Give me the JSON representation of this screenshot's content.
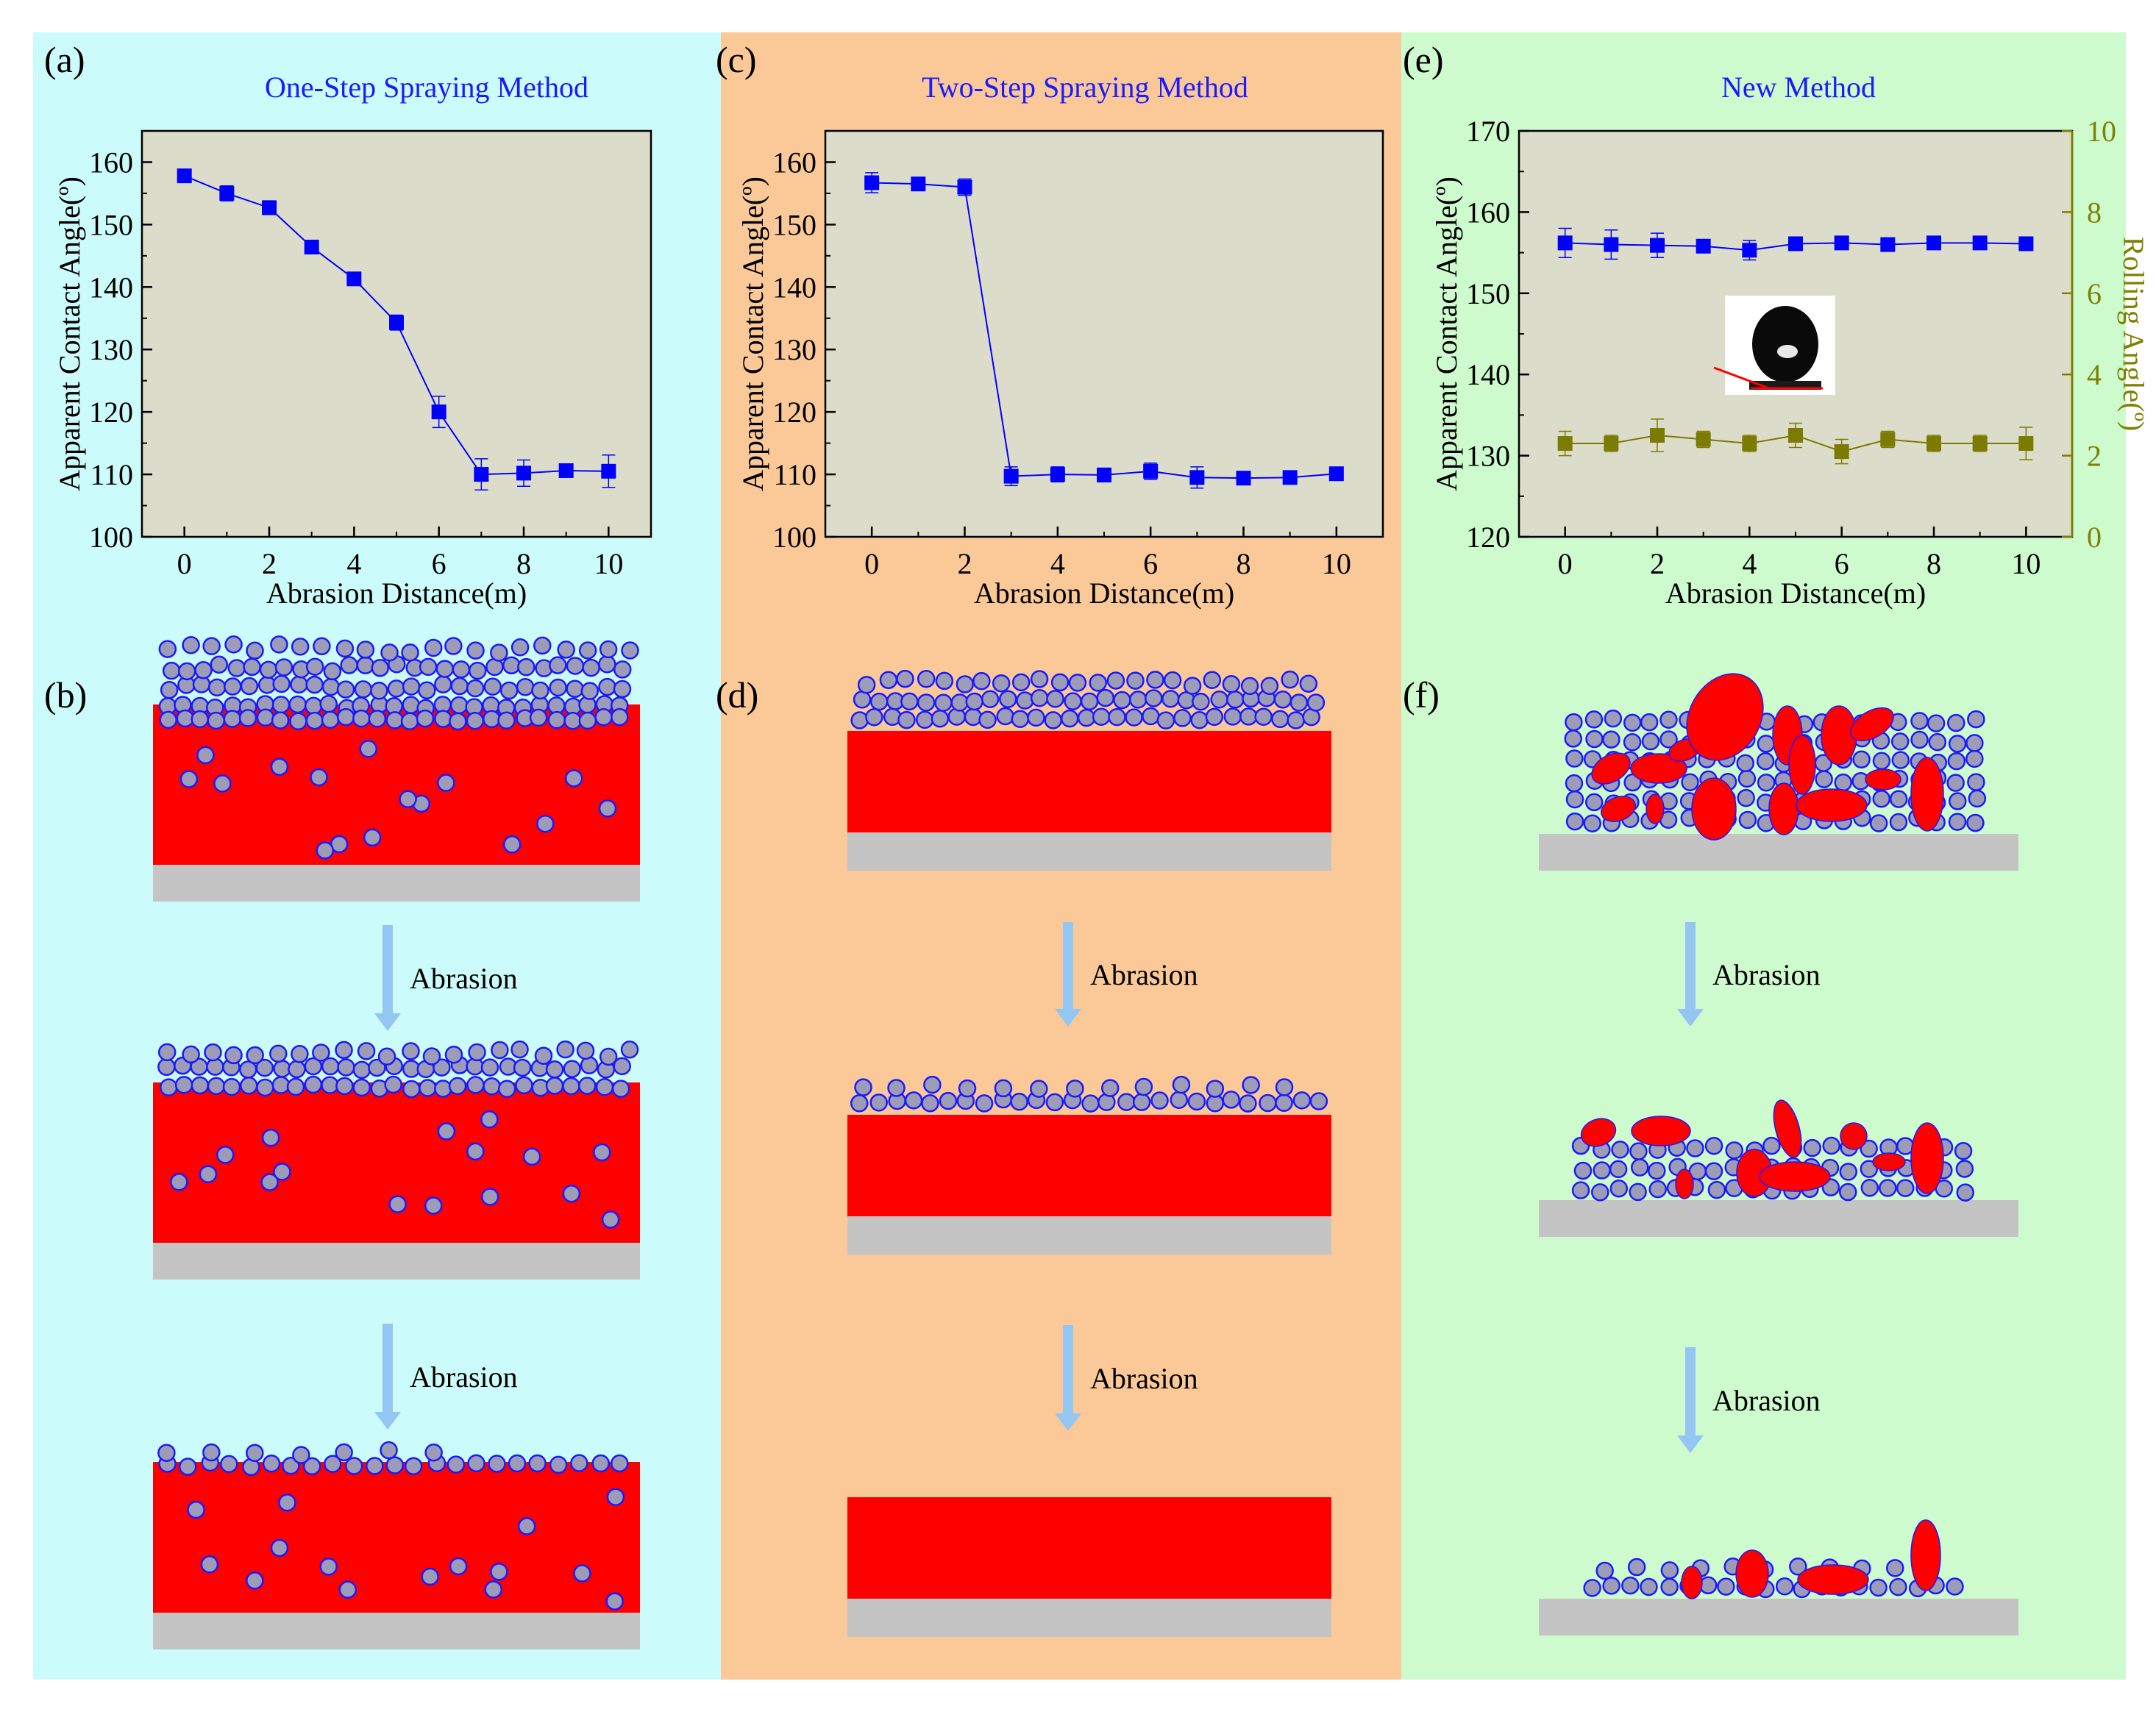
{
  "colors": {
    "panel_1": "#cbfbfb",
    "panel_2": "#fbc998",
    "panel_3": "#cdfbcd",
    "plot_bg": "#dcdcca",
    "series_blue": "#0000ff",
    "series_olive": "#7b7b00",
    "particle_fill": "#9c9cb6",
    "particle_stroke": "#1a1aff",
    "coating_red": "#ff0000",
    "substrate_gray": "#c4c4c4",
    "arrow_blue": "#94c6f4",
    "title_blue": "#1a1aff",
    "rolling_axis_olive": "#808000"
  },
  "panels": [
    {
      "chart_label": "(a)",
      "schematic_label": "(b)",
      "title": "One-Step Spraying Method",
      "arrows": [
        "Abrasion",
        "Abrasion"
      ]
    },
    {
      "chart_label": "(c)",
      "schematic_label": "(d)",
      "title": "Two-Step Spraying Method",
      "arrows": [
        "Abrasion",
        "Abrasion"
      ]
    },
    {
      "chart_label": "(e)",
      "schematic_label": "(f)",
      "title": "New Method",
      "arrows": [
        "Abrasion",
        "Abrasion"
      ]
    }
  ],
  "chart_data": [
    {
      "type": "line",
      "title": "One-Step Spraying Method",
      "xlabel": "Abrasion Distance(m)",
      "ylabel": "Apparent Contact Angle(º)",
      "xlim": [
        -1,
        11
      ],
      "ylim": [
        100,
        165
      ],
      "xticks": [
        0,
        2,
        4,
        6,
        8,
        10
      ],
      "yticks": [
        100,
        110,
        120,
        130,
        140,
        150,
        160
      ],
      "series": [
        {
          "name": "Apparent Contact Angle",
          "axis": "left",
          "color": "#0000ff",
          "x": [
            0,
            1,
            2,
            3,
            4,
            5,
            6,
            7,
            8,
            9,
            10
          ],
          "values": [
            157.8,
            155.0,
            152.7,
            146.4,
            141.3,
            134.3,
            120.0,
            110.0,
            110.2,
            110.6,
            110.5
          ],
          "errors": [
            0.8,
            1.2,
            1.1,
            0.7,
            0.8,
            1.2,
            2.5,
            2.5,
            2.1,
            0.9,
            2.6
          ]
        }
      ]
    },
    {
      "type": "line",
      "title": "Two-Step Spraying Method",
      "xlabel": "Abrasion Distance(m)",
      "ylabel": "Apparent Contact Angle(º)",
      "xlim": [
        -1,
        11
      ],
      "ylim": [
        100,
        165
      ],
      "xticks": [
        0,
        2,
        4,
        6,
        8,
        10
      ],
      "yticks": [
        100,
        110,
        120,
        130,
        140,
        150,
        160
      ],
      "series": [
        {
          "name": "Apparent Contact Angle",
          "axis": "left",
          "color": "#0000ff",
          "x": [
            0,
            1,
            2,
            3,
            4,
            5,
            6,
            7,
            8,
            9,
            10
          ],
          "values": [
            156.7,
            156.5,
            156.0,
            109.7,
            110.0,
            109.9,
            110.5,
            109.5,
            109.4,
            109.5,
            110.1
          ],
          "errors": [
            1.6,
            1.0,
            1.3,
            1.5,
            1.2,
            1.1,
            1.3,
            1.7,
            0.6,
            0.6,
            1.0
          ]
        }
      ]
    },
    {
      "type": "line",
      "title": "New Method",
      "xlabel": "Abrasion Distance(m)",
      "ylabel": "Apparent Contact Angle(º)",
      "y2label": "Rolling Angle(º)",
      "xlim": [
        -1,
        11
      ],
      "ylim": [
        120,
        170
      ],
      "y2lim": [
        0,
        10
      ],
      "xticks": [
        0,
        2,
        4,
        6,
        8,
        10
      ],
      "yticks": [
        120,
        130,
        140,
        150,
        160,
        170
      ],
      "y2ticks": [
        0,
        2,
        4,
        6,
        8,
        10
      ],
      "series": [
        {
          "name": "Apparent Contact Angle",
          "axis": "left",
          "color": "#0000ff",
          "x": [
            0,
            1,
            2,
            3,
            4,
            5,
            6,
            7,
            8,
            9,
            10
          ],
          "values": [
            156.2,
            156.0,
            155.9,
            155.8,
            155.3,
            156.1,
            156.2,
            156.0,
            156.2,
            156.2,
            156.1
          ],
          "errors": [
            1.8,
            1.8,
            1.5,
            0.8,
            1.2,
            0.6,
            0.6,
            0.5,
            0.5,
            0.5,
            0.5
          ]
        },
        {
          "name": "Rolling Angle",
          "axis": "right",
          "color": "#7b7b00",
          "x": [
            0,
            1,
            2,
            3,
            4,
            5,
            6,
            7,
            8,
            9,
            10
          ],
          "values": [
            2.3,
            2.3,
            2.5,
            2.4,
            2.3,
            2.5,
            2.1,
            2.4,
            2.3,
            2.3,
            2.3
          ],
          "errors": [
            0.3,
            0.2,
            0.4,
            0.2,
            0.2,
            0.3,
            0.3,
            0.2,
            0.2,
            0.2,
            0.4
          ]
        }
      ]
    }
  ]
}
